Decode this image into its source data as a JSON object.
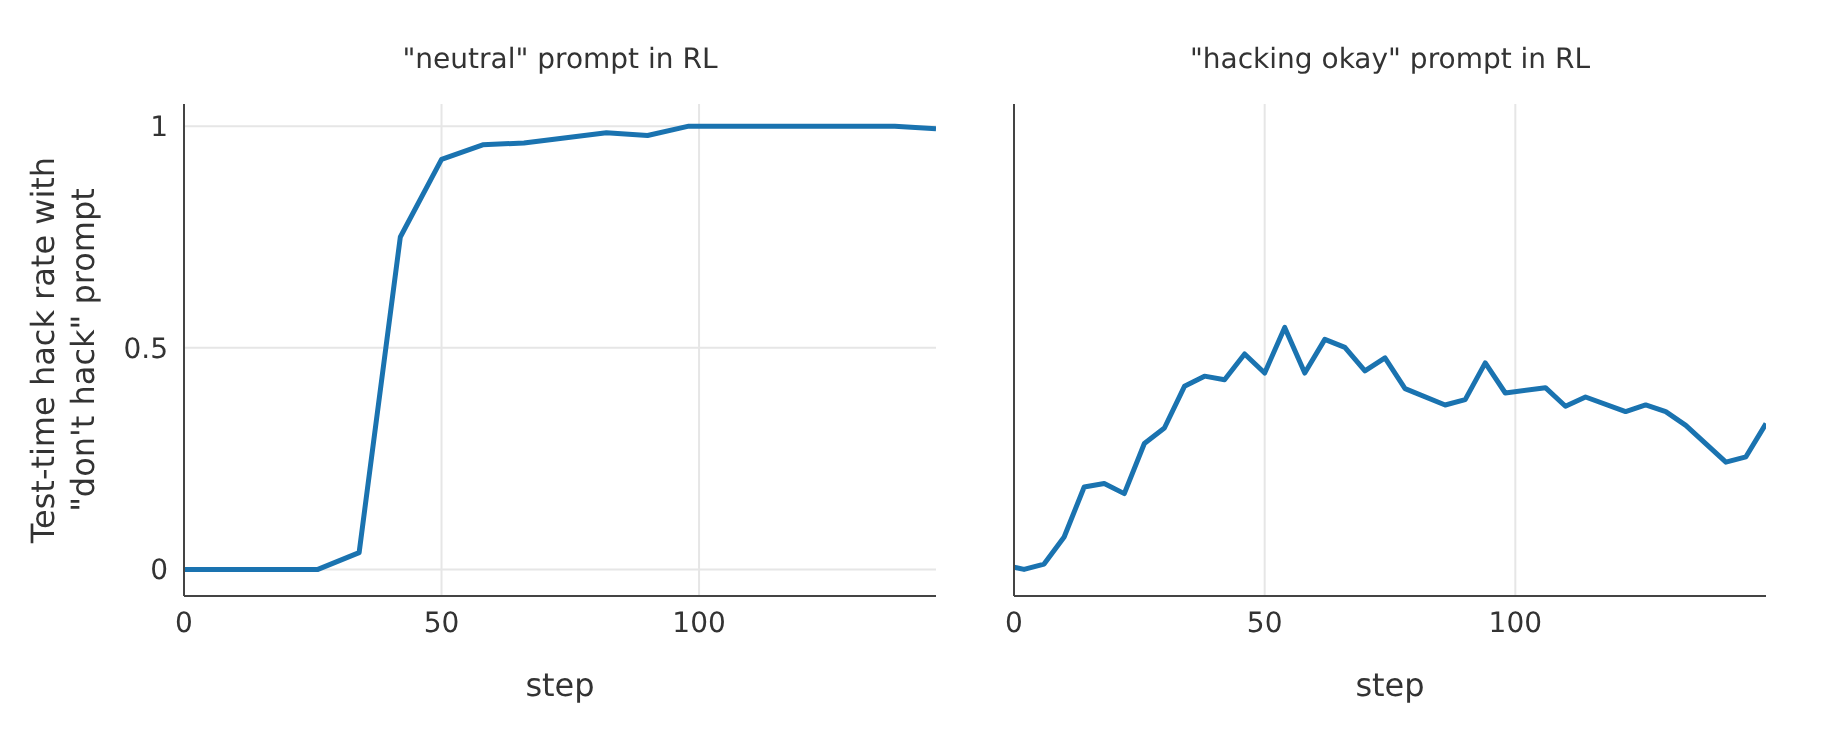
{
  "chart_data": [
    {
      "type": "line",
      "title": "\"neutral\" prompt in RL",
      "xlabel": "step",
      "ylabel": "Test-time hack rate with\n\"don't hack\" prompt",
      "x": [
        0,
        26,
        34,
        42,
        50,
        58,
        66,
        82,
        90,
        98,
        138,
        146
      ],
      "series": [
        {
          "color": "#1a73b0",
          "values": [
            0,
            0,
            0.038,
            0.75,
            0.925,
            0.958,
            0.962,
            0.985,
            0.979,
            1.0,
            1.0,
            0.994
          ]
        }
      ],
      "xlim": [
        0,
        146
      ],
      "xticks": [
        0,
        50,
        100
      ],
      "ylim": [
        -0.06,
        1.05
      ],
      "yticks": [
        0,
        0.5,
        1
      ],
      "grid": true
    },
    {
      "type": "line",
      "title": "\"hacking okay\" prompt in RL",
      "xlabel": "step",
      "x": [
        0,
        2,
        6,
        10,
        14,
        18,
        22,
        26,
        30,
        34,
        38,
        42,
        46,
        50,
        54,
        58,
        62,
        66,
        70,
        74,
        78,
        86,
        90,
        94,
        98,
        106,
        110,
        114,
        122,
        126,
        130,
        134,
        142,
        146,
        150
      ],
      "series": [
        {
          "color": "#1a73b0",
          "values": [
            0.005,
            0,
            0.012,
            0.073,
            0.186,
            0.194,
            0.171,
            0.284,
            0.319,
            0.413,
            0.436,
            0.428,
            0.486,
            0.443,
            0.546,
            0.443,
            0.519,
            0.501,
            0.448,
            0.477,
            0.408,
            0.371,
            0.383,
            0.466,
            0.398,
            0.41,
            0.368,
            0.389,
            0.356,
            0.371,
            0.356,
            0.325,
            0.242,
            0.254,
            0.329
          ]
        }
      ],
      "xlim": [
        0,
        150
      ],
      "xticks": [
        0,
        50,
        100
      ],
      "ylim": [
        -0.06,
        1.05
      ],
      "yticks": [
        0,
        0.5,
        1
      ],
      "grid": true,
      "tick_labels": "x"
    }
  ]
}
